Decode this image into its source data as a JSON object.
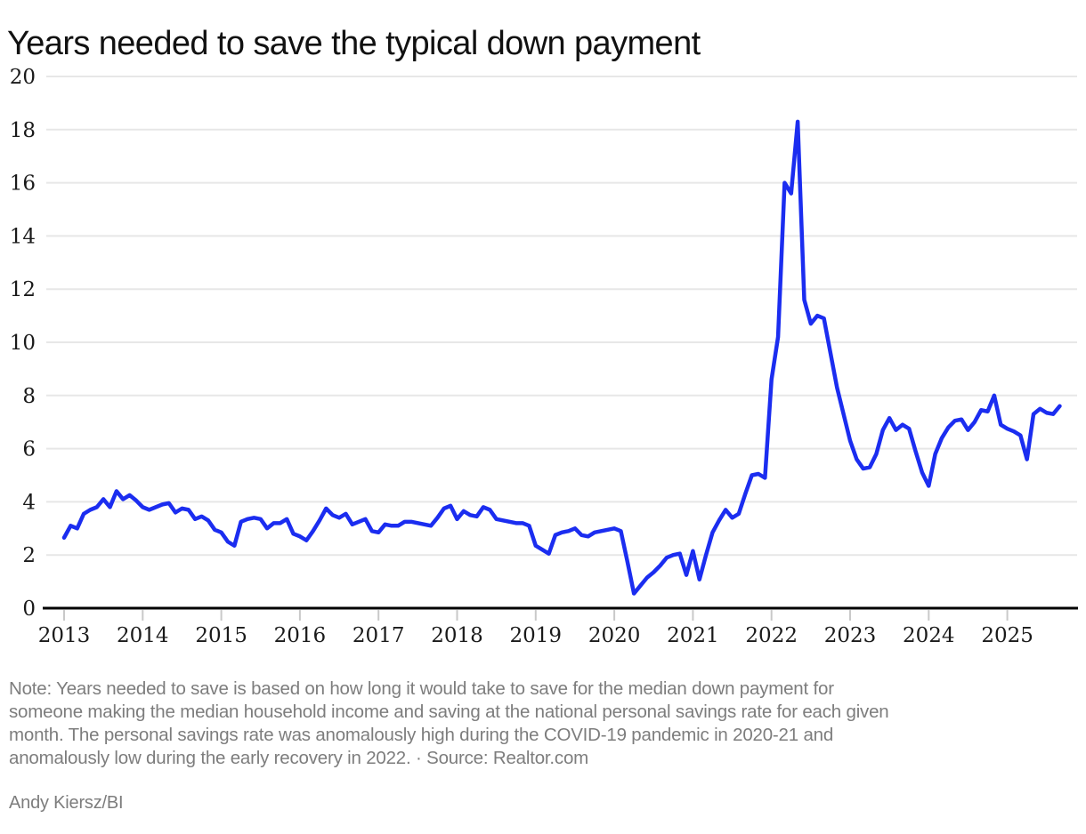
{
  "page": {
    "title": "Years needed to save the typical down payment",
    "note_lines": [
      "Note: Years needed to save is based on how long it would take to save for the median down payment for",
      "someone making the median household income and saving at the national personal savings rate for each given",
      "month. The personal savings rate was anomalously high during the COVID-19 pandemic in 2020-21 and",
      "anomalously low during the early recovery in 2022. · Source: Realtor.com"
    ],
    "credit": "Andy Kiersz/BI"
  },
  "chart_data": {
    "type": "line",
    "title": "Years needed to save the typical down payment",
    "xlabel": "",
    "ylabel": "",
    "x_range": [
      "2013-01",
      "2025-09"
    ],
    "x_frequency": "monthly",
    "x_tick_labels": [
      "2013",
      "2014",
      "2015",
      "2016",
      "2017",
      "2018",
      "2019",
      "2020",
      "2021",
      "2022",
      "2023",
      "2024",
      "2025"
    ],
    "y_ticks": [
      0,
      2,
      4,
      6,
      8,
      10,
      12,
      14,
      16,
      18,
      20
    ],
    "ylim": [
      0,
      20
    ],
    "grid": "horizontal",
    "legend": "none",
    "line_color": "#1B2DF0",
    "gridline_color": "#e7e7e7",
    "axis_color": "#000000",
    "tick_mark_color": "#c9c9c9",
    "series": [
      {
        "name": "Years needed to save",
        "values_by_year": {
          "2013": [
            2.65,
            3.1,
            3.0,
            3.55,
            3.7,
            3.8,
            4.1,
            3.8,
            4.4,
            4.1,
            4.25,
            4.05
          ],
          "2014": [
            3.8,
            3.7,
            3.8,
            3.9,
            3.95,
            3.6,
            3.75,
            3.7,
            3.35,
            3.45,
            3.3,
            2.95
          ],
          "2015": [
            2.85,
            2.5,
            2.35,
            3.25,
            3.35,
            3.4,
            3.35,
            3.0,
            3.2,
            3.2,
            3.35,
            2.8
          ],
          "2016": [
            2.7,
            2.55,
            2.9,
            3.3,
            3.75,
            3.5,
            3.4,
            3.55,
            3.15,
            3.25,
            3.35,
            2.9
          ],
          "2017": [
            2.85,
            3.15,
            3.1,
            3.1,
            3.25,
            3.25,
            3.2,
            3.15,
            3.1,
            3.4,
            3.75,
            3.85
          ],
          "2018": [
            3.35,
            3.65,
            3.5,
            3.45,
            3.8,
            3.7,
            3.35,
            3.3,
            3.25,
            3.2,
            3.2,
            3.1
          ],
          "2019": [
            2.35,
            2.2,
            2.05,
            2.75,
            2.85,
            2.9,
            3.0,
            2.75,
            2.7,
            2.85,
            2.9,
            2.95
          ],
          "2020": [
            3.0,
            2.9,
            1.75,
            0.55,
            0.85,
            1.15,
            1.35,
            1.6,
            1.9,
            2.0,
            2.05,
            1.25
          ],
          "2021": [
            2.15,
            1.08,
            2.0,
            2.85,
            3.3,
            3.7,
            3.4,
            3.55,
            4.3,
            5.0,
            5.05,
            4.9
          ],
          "2022": [
            8.6,
            10.2,
            16.0,
            15.6,
            18.3,
            11.6,
            10.7,
            11.0,
            10.9,
            9.6,
            8.3,
            7.3
          ],
          "2023": [
            6.3,
            5.6,
            5.25,
            5.3,
            5.8,
            6.7,
            7.15,
            6.7,
            6.9,
            6.75,
            5.9,
            5.1
          ],
          "2024": [
            4.6,
            5.8,
            6.4,
            6.8,
            7.05,
            7.1,
            6.7,
            7.0,
            7.45,
            7.4,
            8.0,
            6.9
          ],
          "2025": [
            6.75,
            6.65,
            6.5,
            5.6,
            7.3,
            7.5,
            7.35,
            7.3,
            7.6
          ]
        }
      }
    ]
  }
}
